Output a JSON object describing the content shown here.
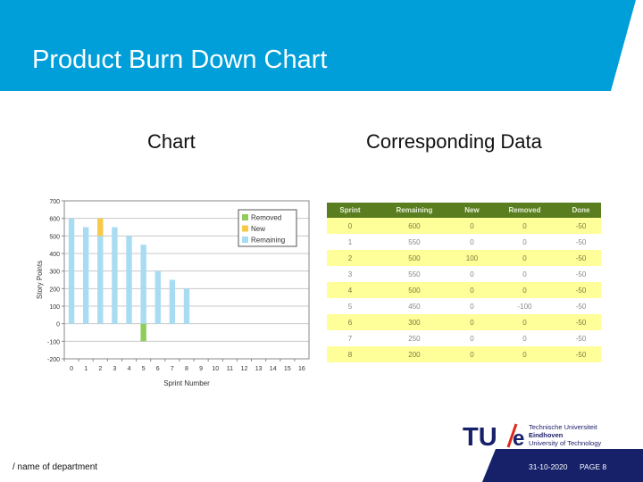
{
  "slide": {
    "title": "Product Burn Down Chart",
    "left_heading": "Chart",
    "right_heading": "Corresponding Data",
    "department": "/ name of department",
    "date": "31-10-2020",
    "page": "PAGE 8",
    "colors": {
      "header": "#009fda",
      "footer": "#16216a",
      "removed": "#8fcc5a",
      "new": "#f7c948",
      "remaining": "#a8dcf2",
      "table_header": "#5a7d1f",
      "table_row": "#ffff99"
    }
  },
  "logo": {
    "mark_left": "TU",
    "mark_right": "e",
    "line1": "Technische Universiteit",
    "line2": "Eindhoven",
    "line3": "University of Technology"
  },
  "table": {
    "headers": [
      "Sprint",
      "Remaining",
      "New",
      "Removed",
      "Done"
    ],
    "rows": [
      [
        "0",
        "600",
        "0",
        "0",
        "-50"
      ],
      [
        "1",
        "550",
        "0",
        "0",
        "-50"
      ],
      [
        "2",
        "500",
        "100",
        "0",
        "-50"
      ],
      [
        "3",
        "550",
        "0",
        "0",
        "-50"
      ],
      [
        "4",
        "500",
        "0",
        "0",
        "-50"
      ],
      [
        "5",
        "450",
        "0",
        "-100",
        "-50"
      ],
      [
        "6",
        "300",
        "0",
        "0",
        "-50"
      ],
      [
        "7",
        "250",
        "0",
        "0",
        "-50"
      ],
      [
        "8",
        "200",
        "0",
        "0",
        "-50"
      ]
    ]
  },
  "chart_data": {
    "type": "bar",
    "stacked": true,
    "title": "",
    "xlabel": "Sprint Number",
    "ylabel": "Story Points",
    "categories": [
      "0",
      "1",
      "2",
      "3",
      "4",
      "5",
      "6",
      "7",
      "8",
      "9",
      "10",
      "11",
      "12",
      "13",
      "14",
      "15",
      "16"
    ],
    "series": [
      {
        "name": "Removed",
        "color": "#8fcc5a",
        "values": [
          0,
          0,
          0,
          0,
          0,
          -100,
          0,
          0,
          0,
          null,
          null,
          null,
          null,
          null,
          null,
          null,
          null
        ]
      },
      {
        "name": "New",
        "color": "#f7c948",
        "values": [
          0,
          0,
          100,
          0,
          0,
          0,
          0,
          0,
          0,
          null,
          null,
          null,
          null,
          null,
          null,
          null,
          null
        ]
      },
      {
        "name": "Remaining",
        "color": "#a8dcf2",
        "values": [
          600,
          550,
          500,
          550,
          500,
          450,
          300,
          250,
          200,
          null,
          null,
          null,
          null,
          null,
          null,
          null,
          null
        ]
      }
    ],
    "yticks": [
      700,
      600,
      500,
      400,
      300,
      200,
      100,
      0,
      -100,
      -200
    ],
    "ylim": [
      -200,
      700
    ],
    "grid": true,
    "legend_position": "upper right"
  }
}
